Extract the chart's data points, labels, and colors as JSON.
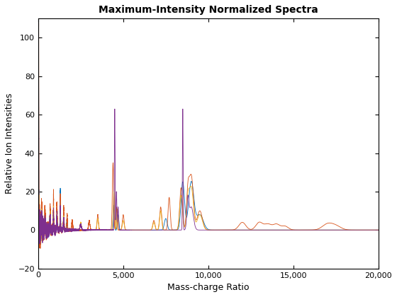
{
  "title": "Maximum-Intensity Normalized Spectra",
  "xlabel": "Mass-charge Ratio",
  "ylabel": "Relative Ion Intensities",
  "xlim": [
    0,
    20000
  ],
  "ylim": [
    -20,
    110
  ],
  "yticks": [
    -20,
    0,
    20,
    40,
    60,
    80,
    100
  ],
  "xticks": [
    0,
    5000,
    10000,
    15000,
    20000
  ],
  "colors": [
    "#0072BD",
    "#D95319",
    "#EDB120",
    "#7E2F8E"
  ],
  "line_width": 0.6,
  "background_color": "#ffffff",
  "figsize": [
    5.6,
    4.2
  ],
  "dpi": 100
}
